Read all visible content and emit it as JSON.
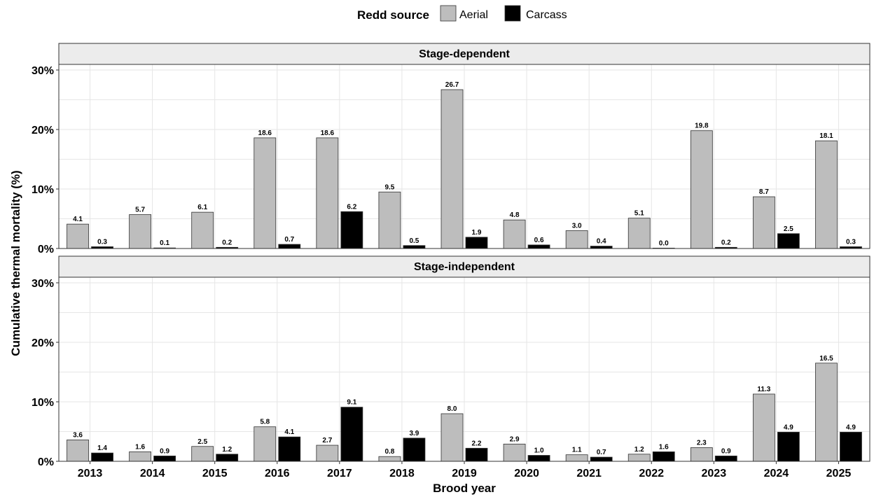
{
  "chart_data": {
    "type": "bar",
    "xlabel": "Brood year",
    "ylabel": "Cumulative thermal mortality (%)",
    "ylim": [
      0,
      30
    ],
    "yticks": [
      "0%",
      "10%",
      "20%",
      "30%"
    ],
    "grid": true,
    "legend": {
      "title": "Redd source",
      "position": "top",
      "entries": [
        {
          "name": "Aerial",
          "color": "#bdbdbd"
        },
        {
          "name": "Carcass",
          "color": "#000000"
        }
      ]
    },
    "categories": [
      "2013",
      "2014",
      "2015",
      "2016",
      "2017",
      "2018",
      "2019",
      "2020",
      "2021",
      "2022",
      "2023",
      "2024",
      "2025"
    ],
    "panels": [
      {
        "title": "Stage-dependent",
        "series": [
          {
            "name": "Aerial",
            "values": [
              4.1,
              5.7,
              6.1,
              18.6,
              18.6,
              9.5,
              26.7,
              4.8,
              3.0,
              5.1,
              19.8,
              8.7,
              18.1
            ]
          },
          {
            "name": "Carcass",
            "values": [
              0.3,
              0.1,
              0.2,
              0.7,
              6.2,
              0.5,
              1.9,
              0.6,
              0.4,
              0.0,
              0.2,
              2.5,
              0.3
            ]
          }
        ]
      },
      {
        "title": "Stage-independent",
        "series": [
          {
            "name": "Aerial",
            "values": [
              3.6,
              1.6,
              2.5,
              5.8,
              2.7,
              0.8,
              8.0,
              2.9,
              1.1,
              1.2,
              2.3,
              11.3,
              16.5
            ]
          },
          {
            "name": "Carcass",
            "values": [
              1.4,
              0.9,
              1.2,
              4.1,
              9.1,
              3.9,
              2.2,
              1.0,
              0.7,
              1.6,
              0.9,
              4.9,
              4.9
            ]
          }
        ]
      }
    ]
  }
}
